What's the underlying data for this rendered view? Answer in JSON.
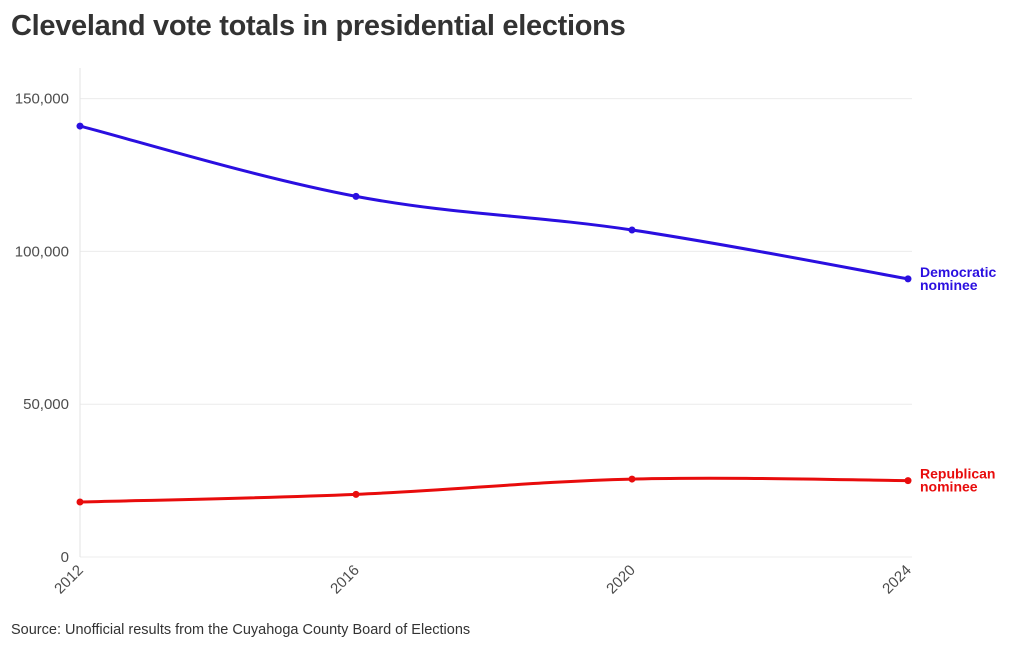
{
  "title": "Cleveland vote totals in presidential elections",
  "source": "Source: Unofficial results from the Cuyahoga County Board of Elections",
  "chart_data": {
    "type": "line",
    "title": "Cleveland vote totals in presidential elections",
    "xlabel": "",
    "ylabel": "",
    "x": [
      "2012",
      "2016",
      "2020",
      "2024"
    ],
    "ylim": [
      0,
      160000
    ],
    "yticks": [
      0,
      50000,
      100000,
      150000
    ],
    "ytick_labels": [
      "0",
      "50,000",
      "100,000",
      "150,000"
    ],
    "grid": true,
    "series": [
      {
        "name": "Democratic nominee",
        "label_lines": [
          "Democratic",
          "nominee"
        ],
        "color": "#2a0fe0",
        "values": [
          141000,
          118000,
          107000,
          91000
        ]
      },
      {
        "name": "Republican nominee",
        "label_lines": [
          "Republican",
          "nominee"
        ],
        "color": "#e80c0c",
        "values": [
          18000,
          20500,
          25500,
          25000
        ]
      }
    ]
  }
}
